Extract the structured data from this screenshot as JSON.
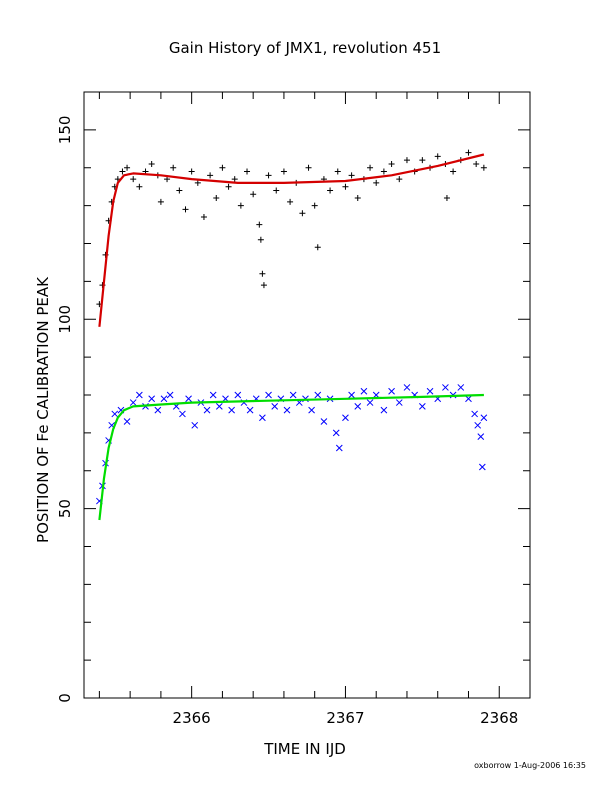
{
  "chart_data": {
    "type": "scatter",
    "title": "Gain History of JMX1, revolution 451",
    "xlabel": "TIME IN IJD",
    "ylabel": "POSITION OF Fe CALIBRATION PEAK",
    "xlim": [
      2365.3,
      2368.2
    ],
    "ylim": [
      0,
      160
    ],
    "x_ticks": [
      2366,
      2367,
      2368
    ],
    "y_ticks": [
      0,
      50,
      100,
      150
    ],
    "grid": false,
    "credit": "oxborrow   1-Aug-2006 16:35",
    "series": [
      {
        "marker": "plus",
        "color": "#000000",
        "points": [
          [
            2365.4,
            104
          ],
          [
            2365.42,
            109
          ],
          [
            2365.44,
            117
          ],
          [
            2365.46,
            126
          ],
          [
            2365.48,
            131
          ],
          [
            2365.5,
            135
          ],
          [
            2365.52,
            137
          ],
          [
            2365.55,
            139
          ],
          [
            2365.58,
            140
          ],
          [
            2365.62,
            137
          ],
          [
            2365.66,
            135
          ],
          [
            2365.7,
            139
          ],
          [
            2365.74,
            141
          ],
          [
            2365.78,
            138
          ],
          [
            2365.8,
            131
          ],
          [
            2365.84,
            137
          ],
          [
            2365.88,
            140
          ],
          [
            2365.92,
            134
          ],
          [
            2365.96,
            129
          ],
          [
            2366.0,
            139
          ],
          [
            2366.04,
            136
          ],
          [
            2366.08,
            127
          ],
          [
            2366.12,
            138
          ],
          [
            2366.16,
            132
          ],
          [
            2366.2,
            140
          ],
          [
            2366.24,
            135
          ],
          [
            2366.28,
            137
          ],
          [
            2366.32,
            130
          ],
          [
            2366.36,
            139
          ],
          [
            2366.4,
            133
          ],
          [
            2366.44,
            125
          ],
          [
            2366.45,
            121
          ],
          [
            2366.46,
            112
          ],
          [
            2366.47,
            109
          ],
          [
            2366.5,
            138
          ],
          [
            2366.55,
            134
          ],
          [
            2366.6,
            139
          ],
          [
            2366.64,
            131
          ],
          [
            2366.68,
            136
          ],
          [
            2366.72,
            128
          ],
          [
            2366.76,
            140
          ],
          [
            2366.8,
            130
          ],
          [
            2366.82,
            119
          ],
          [
            2366.86,
            137
          ],
          [
            2366.9,
            134
          ],
          [
            2366.95,
            139
          ],
          [
            2367.0,
            135
          ],
          [
            2367.04,
            138
          ],
          [
            2367.08,
            132
          ],
          [
            2367.12,
            137
          ],
          [
            2367.16,
            140
          ],
          [
            2367.2,
            136
          ],
          [
            2367.25,
            139
          ],
          [
            2367.3,
            141
          ],
          [
            2367.35,
            137
          ],
          [
            2367.4,
            142
          ],
          [
            2367.45,
            139
          ],
          [
            2367.5,
            142
          ],
          [
            2367.55,
            140
          ],
          [
            2367.6,
            143
          ],
          [
            2367.65,
            141
          ],
          [
            2367.66,
            132
          ],
          [
            2367.7,
            139
          ],
          [
            2367.75,
            142
          ],
          [
            2367.8,
            144
          ],
          [
            2367.85,
            141
          ],
          [
            2367.9,
            140
          ]
        ]
      },
      {
        "marker": "cross",
        "color": "#0000ff",
        "points": [
          [
            2365.4,
            52
          ],
          [
            2365.42,
            56
          ],
          [
            2365.44,
            62
          ],
          [
            2365.46,
            68
          ],
          [
            2365.48,
            72
          ],
          [
            2365.5,
            75
          ],
          [
            2365.54,
            76
          ],
          [
            2365.58,
            73
          ],
          [
            2365.62,
            78
          ],
          [
            2365.66,
            80
          ],
          [
            2365.7,
            77
          ],
          [
            2365.74,
            79
          ],
          [
            2365.78,
            76
          ],
          [
            2365.82,
            79
          ],
          [
            2365.86,
            80
          ],
          [
            2365.9,
            77
          ],
          [
            2365.94,
            75
          ],
          [
            2365.98,
            79
          ],
          [
            2366.02,
            72
          ],
          [
            2366.06,
            78
          ],
          [
            2366.1,
            76
          ],
          [
            2366.14,
            80
          ],
          [
            2366.18,
            77
          ],
          [
            2366.22,
            79
          ],
          [
            2366.26,
            76
          ],
          [
            2366.3,
            80
          ],
          [
            2366.34,
            78
          ],
          [
            2366.38,
            76
          ],
          [
            2366.42,
            79
          ],
          [
            2366.46,
            74
          ],
          [
            2366.5,
            80
          ],
          [
            2366.54,
            77
          ],
          [
            2366.58,
            79
          ],
          [
            2366.62,
            76
          ],
          [
            2366.66,
            80
          ],
          [
            2366.7,
            78
          ],
          [
            2366.74,
            79
          ],
          [
            2366.78,
            76
          ],
          [
            2366.82,
            80
          ],
          [
            2366.86,
            73
          ],
          [
            2366.9,
            79
          ],
          [
            2366.94,
            70
          ],
          [
            2366.96,
            66
          ],
          [
            2367.0,
            74
          ],
          [
            2367.04,
            80
          ],
          [
            2367.08,
            77
          ],
          [
            2367.12,
            81
          ],
          [
            2367.16,
            78
          ],
          [
            2367.2,
            80
          ],
          [
            2367.25,
            76
          ],
          [
            2367.3,
            81
          ],
          [
            2367.35,
            78
          ],
          [
            2367.4,
            82
          ],
          [
            2367.45,
            80
          ],
          [
            2367.5,
            77
          ],
          [
            2367.55,
            81
          ],
          [
            2367.6,
            79
          ],
          [
            2367.65,
            82
          ],
          [
            2367.7,
            80
          ],
          [
            2367.75,
            82
          ],
          [
            2367.8,
            79
          ],
          [
            2367.84,
            75
          ],
          [
            2367.86,
            72
          ],
          [
            2367.88,
            69
          ],
          [
            2367.89,
            61
          ],
          [
            2367.9,
            74
          ]
        ]
      }
    ],
    "fit_lines": [
      {
        "color": "#d40000",
        "points": [
          [
            2365.4,
            98
          ],
          [
            2365.43,
            110
          ],
          [
            2365.46,
            122
          ],
          [
            2365.49,
            131
          ],
          [
            2365.52,
            136
          ],
          [
            2365.56,
            138
          ],
          [
            2365.62,
            138.5
          ],
          [
            2365.8,
            138
          ],
          [
            2366.0,
            137
          ],
          [
            2366.3,
            136
          ],
          [
            2366.6,
            136
          ],
          [
            2367.0,
            136.5
          ],
          [
            2367.3,
            138
          ],
          [
            2367.6,
            140.5
          ],
          [
            2367.9,
            143.5
          ]
        ]
      },
      {
        "color": "#00dd00",
        "points": [
          [
            2365.4,
            47
          ],
          [
            2365.43,
            58
          ],
          [
            2365.46,
            66
          ],
          [
            2365.49,
            71
          ],
          [
            2365.52,
            74
          ],
          [
            2365.56,
            76
          ],
          [
            2365.62,
            77
          ],
          [
            2365.8,
            77.5
          ],
          [
            2366.0,
            78
          ],
          [
            2366.5,
            78.5
          ],
          [
            2367.0,
            79
          ],
          [
            2367.5,
            79.5
          ],
          [
            2367.9,
            80
          ]
        ]
      }
    ]
  }
}
